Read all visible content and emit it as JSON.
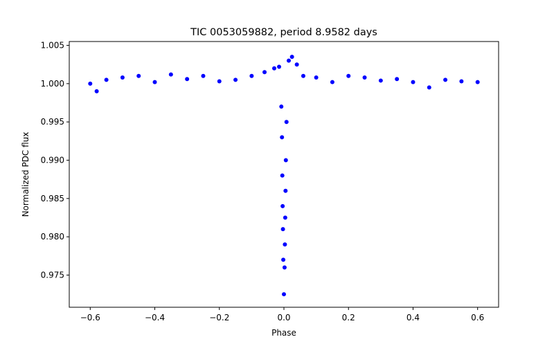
{
  "chart_data": {
    "type": "scatter",
    "title": "TIC 0053059882, period 8.9582 days",
    "xlabel": "Phase",
    "ylabel": "Normalized PDC flux",
    "xlim": [
      -0.665,
      0.665
    ],
    "ylim": [
      0.9708,
      1.0055
    ],
    "xticks": [
      -0.6,
      -0.4,
      -0.2,
      0.0,
      0.2,
      0.4,
      0.6
    ],
    "xtick_labels": [
      "−0.6",
      "−0.4",
      "−0.2",
      "0.0",
      "0.2",
      "0.4",
      "0.6"
    ],
    "yticks": [
      0.975,
      0.98,
      0.985,
      0.99,
      0.995,
      1.0,
      1.005
    ],
    "ytick_labels": [
      "0.975",
      "0.980",
      "0.985",
      "0.990",
      "0.995",
      "1.000",
      "1.005"
    ],
    "grid": false,
    "series": [
      {
        "name": "PDC flux",
        "color": "#0000ff",
        "marker": "circle",
        "points": [
          [
            -0.6,
            1.0
          ],
          [
            -0.58,
            0.999
          ],
          [
            -0.55,
            1.0005
          ],
          [
            -0.5,
            1.0008
          ],
          [
            -0.45,
            1.001
          ],
          [
            -0.4,
            1.0002
          ],
          [
            -0.35,
            1.0012
          ],
          [
            -0.3,
            1.0006
          ],
          [
            -0.25,
            1.001
          ],
          [
            -0.2,
            1.0003
          ],
          [
            -0.15,
            1.0005
          ],
          [
            -0.1,
            1.001
          ],
          [
            -0.06,
            1.0015
          ],
          [
            -0.03,
            1.002
          ],
          [
            -0.015,
            1.0022
          ],
          [
            -0.008,
            0.997
          ],
          [
            -0.006,
            0.993
          ],
          [
            -0.005,
            0.988
          ],
          [
            -0.004,
            0.984
          ],
          [
            -0.003,
            0.981
          ],
          [
            -0.002,
            0.977
          ],
          [
            0.0,
            0.9725
          ],
          [
            0.002,
            0.976
          ],
          [
            0.003,
            0.979
          ],
          [
            0.004,
            0.9825
          ],
          [
            0.005,
            0.986
          ],
          [
            0.006,
            0.99
          ],
          [
            0.008,
            0.995
          ],
          [
            0.015,
            1.003
          ],
          [
            0.025,
            1.0035
          ],
          [
            0.04,
            1.0025
          ],
          [
            0.06,
            1.001
          ],
          [
            0.1,
            1.0008
          ],
          [
            0.15,
            1.0002
          ],
          [
            0.2,
            1.001
          ],
          [
            0.25,
            1.0008
          ],
          [
            0.3,
            1.0004
          ],
          [
            0.35,
            1.0006
          ],
          [
            0.4,
            1.0002
          ],
          [
            0.45,
            0.9995
          ],
          [
            0.5,
            1.0005
          ],
          [
            0.55,
            1.0003
          ],
          [
            0.6,
            1.0002
          ]
        ]
      }
    ]
  }
}
